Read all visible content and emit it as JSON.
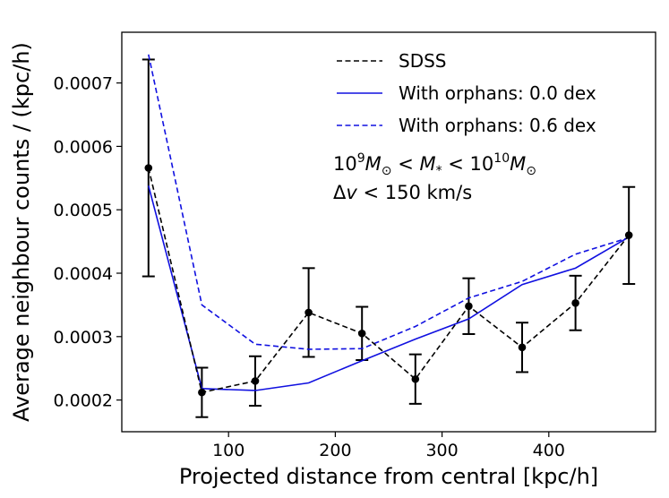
{
  "chart_data": {
    "type": "line",
    "title": "",
    "xlabel": "Projected distance from central [kpc/h]",
    "ylabel": "Average neighbour counts / (kpc/h)",
    "xlim": [
      0,
      500
    ],
    "ylim": [
      0.00015,
      0.00078
    ],
    "x_ticks": [
      100,
      200,
      300,
      400
    ],
    "y_ticks": [
      0.0002,
      0.0003,
      0.0004,
      0.0005,
      0.0006,
      0.0007
    ],
    "legend_position": "top-right",
    "x": [
      25,
      75,
      125,
      175,
      225,
      275,
      325,
      375,
      425,
      475
    ],
    "series": [
      {
        "name": "SDSS",
        "color": "#000000",
        "style": "dashed",
        "markers": true,
        "values": [
          0.000566,
          0.000212,
          0.00023,
          0.000338,
          0.000305,
          0.000233,
          0.000348,
          0.000283,
          0.000353,
          0.00046
        ],
        "err_low": [
          0.000395,
          0.000173,
          0.000191,
          0.000268,
          0.000263,
          0.000194,
          0.000304,
          0.000244,
          0.00031,
          0.000383
        ],
        "err_high": [
          0.000737,
          0.000251,
          0.000269,
          0.000408,
          0.000347,
          0.000272,
          0.000392,
          0.000322,
          0.000396,
          0.000536
        ]
      },
      {
        "name": "With orphans: 0.0 dex",
        "color": "#1010e0",
        "style": "solid",
        "markers": false,
        "values": [
          0.000538,
          0.000218,
          0.000215,
          0.000227,
          0.000262,
          0.000296,
          0.000328,
          0.000382,
          0.000408,
          0.000457
        ]
      },
      {
        "name": "With orphans: 0.6 dex",
        "color": "#1010e0",
        "style": "dashed",
        "markers": false,
        "values": [
          0.000745,
          0.00035,
          0.000288,
          0.00028,
          0.000281,
          0.000316,
          0.000361,
          0.000387,
          0.00043,
          0.000456
        ]
      }
    ],
    "annotations": {
      "mass_range": {
        "prefix": "10",
        "prefix_exp": "9",
        "m_sun_1": "M",
        "sun_sub_1": "⊙",
        "lt_1": " < ",
        "m_star": "M",
        "star_sub": "*",
        "lt_2": " < ",
        "suffix": "10",
        "suffix_exp": "10",
        "m_sun_2": "M",
        "sun_sub_2": "⊙"
      },
      "velocity": {
        "delta": "Δ",
        "v": "v",
        "rest": " < 150 km/s"
      }
    }
  }
}
